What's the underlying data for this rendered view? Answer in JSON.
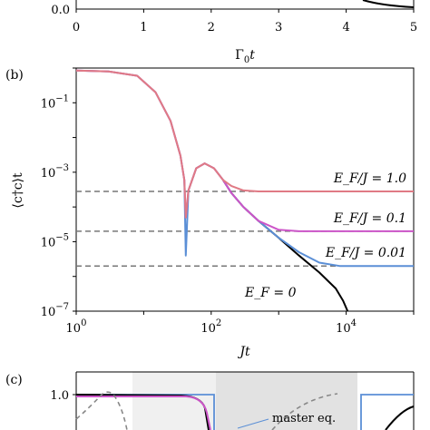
{
  "panel_a": {
    "y_tick_label": "0.0",
    "x_ticks": [
      "0",
      "1",
      "2",
      "3",
      "4",
      "5"
    ],
    "x_range": [
      0,
      5
    ],
    "xlabel": "Γ₀t",
    "xlabel_html": {
      "base": "Γ",
      "sub": "0",
      "rest": "t"
    }
  },
  "panel_b": {
    "tag": "(b)",
    "ylabel": "⟨c†c⟩t",
    "xlabel": "Jt",
    "x_ticks": [
      {
        "base": "10",
        "exp": "0",
        "value": 1
      },
      {
        "base": "10",
        "exp": "2",
        "value": 100
      },
      {
        "base": "10",
        "exp": "4",
        "value": 10000
      }
    ],
    "y_ticks": [
      {
        "base": "10",
        "exp": "−1",
        "value": 0.1
      },
      {
        "base": "10",
        "exp": "−3",
        "value": 0.001
      },
      {
        "base": "10",
        "exp": "−5",
        "value": 1e-05
      },
      {
        "base": "10",
        "exp": "−7",
        "value": 1e-07
      }
    ]
  },
  "panel_c": {
    "tag": "(c)",
    "y_tick_label": "1.0",
    "annotation": "master eq."
  },
  "colors": {
    "ef_1": "#e07a85",
    "ef_01": "#cc55c8",
    "ef_001": "#5b8fd6",
    "ef_0": "#000000",
    "dashed": "#777777",
    "shade": "#e6e6e6"
  },
  "chart_data": {
    "type": "line",
    "xscale": "log",
    "yscale": "log",
    "xlim": [
      1,
      100000
    ],
    "ylim": [
      1e-07,
      1
    ],
    "series": [
      {
        "name": "E_F/J = 1.0",
        "label": "E_F/J = 1.0",
        "color": "#e07a85",
        "plateau": 0.00028,
        "points": [
          [
            1,
            0.85
          ],
          [
            3,
            0.8
          ],
          [
            8,
            0.6
          ],
          [
            15,
            0.2
          ],
          [
            25,
            0.03
          ],
          [
            35,
            0.003
          ],
          [
            40,
            0.0006
          ],
          [
            42,
            5e-05
          ],
          [
            46,
            0.0003
          ],
          [
            60,
            0.0013
          ],
          [
            80,
            0.0018
          ],
          [
            110,
            0.0013
          ],
          [
            150,
            0.0006
          ],
          [
            200,
            0.0004
          ],
          [
            300,
            0.0003
          ],
          [
            500,
            0.00028
          ],
          [
            100000,
            0.00028
          ]
        ]
      },
      {
        "name": "E_F/J = 0.1",
        "label": "E_F/J = 0.1",
        "color": "#cc55c8",
        "plateau": 2e-05,
        "points": [
          [
            1,
            0.85
          ],
          [
            3,
            0.8
          ],
          [
            8,
            0.6
          ],
          [
            15,
            0.2
          ],
          [
            25,
            0.03
          ],
          [
            35,
            0.003
          ],
          [
            40,
            0.0006
          ],
          [
            42,
            5e-05
          ],
          [
            46,
            0.0003
          ],
          [
            60,
            0.0013
          ],
          [
            80,
            0.0018
          ],
          [
            110,
            0.0013
          ],
          [
            150,
            0.0006
          ],
          [
            200,
            0.00025
          ],
          [
            300,
            0.0001
          ],
          [
            500,
            4e-05
          ],
          [
            1000,
            2.2e-05
          ],
          [
            2000,
            2e-05
          ],
          [
            100000,
            2e-05
          ]
        ]
      },
      {
        "name": "E_F/J = 0.01",
        "label": "E_F/J = 0.01",
        "color": "#5b8fd6",
        "plateau": 2e-06,
        "points": [
          [
            1,
            0.85
          ],
          [
            3,
            0.8
          ],
          [
            8,
            0.6
          ],
          [
            15,
            0.2
          ],
          [
            25,
            0.03
          ],
          [
            35,
            0.003
          ],
          [
            40,
            0.0006
          ],
          [
            42,
            4e-06
          ],
          [
            46,
            0.0003
          ],
          [
            60,
            0.0013
          ],
          [
            80,
            0.0018
          ],
          [
            110,
            0.0013
          ],
          [
            150,
            0.0006
          ],
          [
            200,
            0.00025
          ],
          [
            300,
            0.0001
          ],
          [
            500,
            4e-05
          ],
          [
            1000,
            1.3e-05
          ],
          [
            2000,
            5e-06
          ],
          [
            4000,
            2.5e-06
          ],
          [
            8000,
            2e-06
          ],
          [
            100000,
            2e-06
          ]
        ]
      },
      {
        "name": "E_F = 0",
        "label": "E_F = 0",
        "color": "#000000",
        "points": [
          [
            150,
            0.0006
          ],
          [
            200,
            0.00025
          ],
          [
            300,
            0.0001
          ],
          [
            500,
            4e-05
          ],
          [
            1000,
            1.3e-05
          ],
          [
            2000,
            4e-06
          ],
          [
            4000,
            1.3e-06
          ],
          [
            7000,
            4.5e-07
          ],
          [
            9000,
            2e-07
          ],
          [
            10500,
            1e-07
          ]
        ]
      }
    ]
  }
}
